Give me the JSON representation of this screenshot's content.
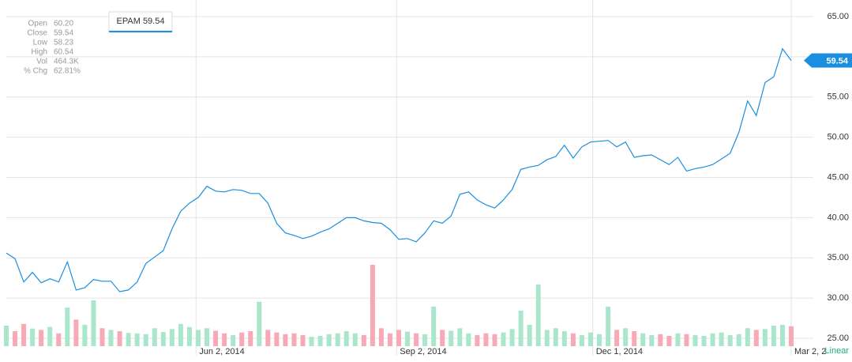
{
  "chart_data": {
    "type": "line",
    "x": [
      "2014-03-07",
      "2014-03-11",
      "2014-03-15",
      "2014-03-19",
      "2014-03-23",
      "2014-03-27",
      "2014-03-31",
      "2014-04-04",
      "2014-04-08",
      "2014-04-12",
      "2014-04-16",
      "2014-04-20",
      "2014-04-24",
      "2014-04-28",
      "2014-05-02",
      "2014-05-06",
      "2014-05-10",
      "2014-05-14",
      "2014-05-18",
      "2014-05-22",
      "2014-05-26",
      "2014-05-30",
      "2014-06-03",
      "2014-06-07",
      "2014-06-11",
      "2014-06-15",
      "2014-06-19",
      "2014-06-23",
      "2014-06-27",
      "2014-07-01",
      "2014-07-05",
      "2014-07-09",
      "2014-07-13",
      "2014-07-17",
      "2014-07-21",
      "2014-07-25",
      "2014-07-29",
      "2014-08-02",
      "2014-08-06",
      "2014-08-10",
      "2014-08-14",
      "2014-08-18",
      "2014-08-22",
      "2014-08-26",
      "2014-08-30",
      "2014-09-03",
      "2014-09-07",
      "2014-09-11",
      "2014-09-15",
      "2014-09-19",
      "2014-09-23",
      "2014-09-27",
      "2014-10-01",
      "2014-10-05",
      "2014-10-09",
      "2014-10-13",
      "2014-10-17",
      "2014-10-21",
      "2014-10-25",
      "2014-10-29",
      "2014-11-02",
      "2014-11-06",
      "2014-11-10",
      "2014-11-14",
      "2014-11-18",
      "2014-11-22",
      "2014-11-26",
      "2014-11-30",
      "2014-12-04",
      "2014-12-08",
      "2014-12-12",
      "2014-12-16",
      "2014-12-20",
      "2014-12-24",
      "2014-12-28",
      "2015-01-01",
      "2015-01-05",
      "2015-01-09",
      "2015-01-13",
      "2015-01-17",
      "2015-01-21",
      "2015-01-25",
      "2015-01-29",
      "2015-02-02",
      "2015-02-06",
      "2015-02-10",
      "2015-02-14",
      "2015-02-18",
      "2015-02-22",
      "2015-02-26",
      "2015-03-02"
    ],
    "xlim": [
      "2014-03-07",
      "2015-03-02"
    ],
    "xticks": [
      {
        "value": "2014-06-02",
        "label": "Jun 2, 2014"
      },
      {
        "value": "2014-09-02",
        "label": "Sep 2, 2014"
      },
      {
        "value": "2014-12-01",
        "label": "Dec 1, 2014"
      },
      {
        "value": "2015-03-02",
        "label": "Mar 2, 2"
      }
    ],
    "ylim": [
      25,
      65
    ],
    "yticks": [
      {
        "value": 25,
        "label": "25.00"
      },
      {
        "value": 30,
        "label": "30.00"
      },
      {
        "value": 35,
        "label": "35.00"
      },
      {
        "value": 40,
        "label": "40.00"
      },
      {
        "value": 45,
        "label": "45.00"
      },
      {
        "value": 50,
        "label": "50.00"
      },
      {
        "value": 55,
        "label": "55.00"
      },
      {
        "value": 60,
        "label": "60.00"
      },
      {
        "value": 65,
        "label": "65.00"
      }
    ],
    "grid": true,
    "scale_label": "Linear",
    "series": [
      {
        "name": "EPAM",
        "color": "#1a8fe0",
        "values": [
          35.6,
          34.9,
          32.0,
          33.2,
          31.9,
          32.4,
          32.0,
          34.5,
          31.0,
          31.3,
          32.3,
          32.1,
          32.1,
          30.8,
          31.0,
          32.0,
          34.3,
          35.1,
          35.9,
          38.6,
          40.8,
          41.8,
          42.5,
          43.9,
          43.3,
          43.2,
          43.5,
          43.4,
          43.0,
          43.0,
          41.8,
          39.3,
          38.1,
          37.8,
          37.4,
          37.7,
          38.2,
          38.6,
          39.3,
          40.0,
          40.0,
          39.6,
          39.4,
          39.3,
          38.5,
          37.3,
          37.4,
          37.0,
          38.1,
          39.6,
          39.3,
          40.2,
          42.9,
          43.2,
          42.2,
          41.6,
          41.2,
          42.2,
          43.5,
          46.0,
          46.3,
          46.5,
          47.2,
          47.6,
          49.0,
          47.4,
          48.8,
          49.4,
          49.5,
          49.6,
          48.8,
          49.4,
          47.5,
          47.7,
          47.8,
          47.2,
          46.6,
          47.5,
          45.8,
          46.1,
          46.3,
          46.6,
          47.3,
          48.0,
          50.6,
          54.5,
          52.7,
          56.8,
          57.5,
          61.0,
          59.54
        ]
      }
    ],
    "volume": {
      "up_color": "#a9e6cc",
      "down_color": "#f7a9b6",
      "values": [
        480,
        350,
        520,
        410,
        380,
        450,
        300,
        900,
        620,
        500,
        1070,
        420,
        380,
        350,
        310,
        300,
        280,
        420,
        330,
        400,
        520,
        450,
        380,
        420,
        360,
        300,
        260,
        320,
        350,
        1040,
        380,
        320,
        280,
        300,
        260,
        220,
        240,
        280,
        300,
        350,
        300,
        260,
        1900,
        420,
        300,
        380,
        340,
        300,
        280,
        925,
        380,
        360,
        420,
        300,
        260,
        300,
        280,
        320,
        400,
        830,
        500,
        1440,
        380,
        420,
        350,
        300,
        260,
        320,
        280,
        925,
        380,
        420,
        350,
        300,
        260,
        280,
        240,
        300,
        280,
        260,
        240,
        300,
        320,
        260,
        280,
        420,
        380,
        400,
        480,
        500,
        464.3
      ]
    },
    "info": [
      {
        "label": "Open",
        "value": "60.20"
      },
      {
        "label": "Close",
        "value": "59.54"
      },
      {
        "label": "Low",
        "value": "58.23"
      },
      {
        "label": "High",
        "value": "60.54"
      },
      {
        "label": "Vol",
        "value": "464.3K"
      },
      {
        "label": "% Chg",
        "value": "62.81%"
      }
    ]
  }
}
